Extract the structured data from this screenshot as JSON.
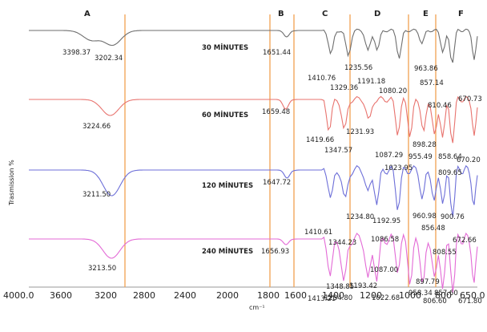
{
  "chart_data": {
    "type": "line",
    "xlabel": "cm⁻¹",
    "ylabel": "Trasmission %",
    "xlim": [
      4000,
      650
    ],
    "x_tick_labels": [
      "4000.0",
      "3600",
      "3200",
      "2800",
      "2400",
      "2000",
      "1800",
      "1600",
      "1400",
      "1200",
      "1000",
      "800",
      "650.0"
    ],
    "region_labels": [
      "A",
      "B",
      "C",
      "D",
      "E",
      "F"
    ],
    "region_lines_cm": [
      3000,
      1730,
      1590,
      1300,
      1020,
      830
    ],
    "grid": false,
    "series": [
      {
        "name": "30 MİNUTES",
        "color": "#6e6e6e",
        "peaks": [
          {
            "x": 3398.37,
            "label": "3398.37"
          },
          {
            "x": 3202.34,
            "label": "3202.34"
          },
          {
            "x": 1651.44,
            "label": "1651.44"
          },
          {
            "x": 1410.76,
            "label": "1410.76"
          },
          {
            "x": 1329.36,
            "label": "1329.36"
          },
          {
            "x": 1235.56,
            "label": "1235.56"
          },
          {
            "x": 1191.18,
            "label": "1191.18"
          },
          {
            "x": 1080.2,
            "label": "1080.20"
          },
          {
            "x": 963.86,
            "label": "963.86"
          },
          {
            "x": 857.14,
            "label": "857.14"
          },
          {
            "x": 810.46,
            "label": "810.46"
          },
          {
            "x": 670.73,
            "label": "670.73"
          }
        ]
      },
      {
        "name": "60 MİNUTES",
        "color": "#e8736e",
        "peaks": [
          {
            "x": 3224.66,
            "label": "3224.66"
          },
          {
            "x": 1659.48,
            "label": "1659.48"
          },
          {
            "x": 1419.66,
            "label": "1419.66"
          },
          {
            "x": 1347.57,
            "label": "1347.57"
          },
          {
            "x": 1231.93,
            "label": "1231.93"
          },
          {
            "x": 1087.29,
            "label": "1087.29"
          },
          {
            "x": 1023.95,
            "label": "1023.95"
          },
          {
            "x": 955.49,
            "label": "955.49"
          },
          {
            "x": 898.28,
            "label": "898.28"
          },
          {
            "x": 858.64,
            "label": "858.64"
          },
          {
            "x": 809.65,
            "label": "809.65"
          },
          {
            "x": 670.2,
            "label": "670.20"
          }
        ]
      },
      {
        "name": "120 MİNUTES",
        "color": "#6d6fd8",
        "peaks": [
          {
            "x": 3211.5,
            "label": "3211.50"
          },
          {
            "x": 1647.72,
            "label": "1647.72"
          },
          {
            "x": 1410.61,
            "label": "1410.61"
          },
          {
            "x": 1344.23,
            "label": "1344.23"
          },
          {
            "x": 1234.8,
            "label": "1234.80"
          },
          {
            "x": 1192.95,
            "label": "1192.95"
          },
          {
            "x": 1086.58,
            "label": "1086.58"
          },
          {
            "x": 960.98,
            "label": "960.98"
          },
          {
            "x": 900.76,
            "label": "900.76"
          },
          {
            "x": 856.48,
            "label": "856.48"
          },
          {
            "x": 808.55,
            "label": "808.55"
          },
          {
            "x": 672.66,
            "label": "672.66"
          }
        ]
      },
      {
        "name": "240 MİNUTES",
        "color": "#e36ad6",
        "peaks": [
          {
            "x": 3213.5,
            "label": "3213.50"
          },
          {
            "x": 1656.93,
            "label": "1656.93"
          },
          {
            "x": 1413.21,
            "label": "1413.21"
          },
          {
            "x": 1348.85,
            "label": "1348.85"
          },
          {
            "x": 1234.8,
            "label": "1234.80"
          },
          {
            "x": 1193.42,
            "label": "1193.42"
          },
          {
            "x": 1087.0,
            "label": "1087.00"
          },
          {
            "x": 1022.68,
            "label": "1022.68"
          },
          {
            "x": 958.34,
            "label": "958.34"
          },
          {
            "x": 897.79,
            "label": "897.79"
          },
          {
            "x": 857.6,
            "label": "857.60"
          },
          {
            "x": 806.6,
            "label": "806.60"
          },
          {
            "x": 671.8,
            "label": "671.80"
          }
        ]
      }
    ]
  }
}
